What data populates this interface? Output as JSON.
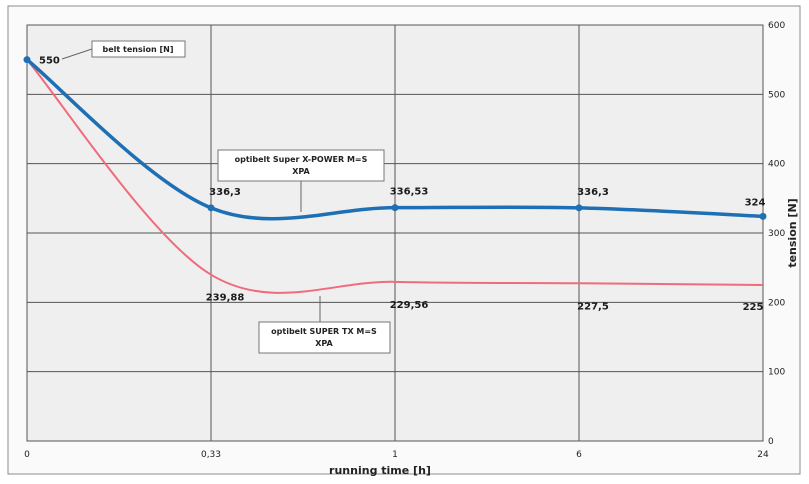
{
  "chart_data": {
    "type": "line",
    "categories": [
      "0",
      "0,33",
      "1",
      "6",
      "24"
    ],
    "series": [
      {
        "name": "optibelt Super X-POWER M=S XPA",
        "color": "#1f6fb5",
        "values": [
          550,
          336.3,
          336.53,
          336.3,
          324
        ],
        "labels": [
          "550",
          "336,3",
          "336,53",
          "336,3",
          "324"
        ]
      },
      {
        "name": "optibelt SUPER TX M=S XPA",
        "color": "#f06b7c",
        "values": [
          550,
          239.88,
          229.56,
          227.5,
          225
        ],
        "labels": [
          "",
          "239,88",
          "229,56",
          "227,5",
          "225"
        ]
      }
    ],
    "annotations": [
      "belt tension [N]"
    ],
    "xlabel": "running time [h]",
    "ylabel": "tension [N]",
    "ylim": [
      0,
      600
    ],
    "yticks": [
      0,
      100,
      200,
      300,
      400,
      500,
      600
    ],
    "grid": true
  }
}
